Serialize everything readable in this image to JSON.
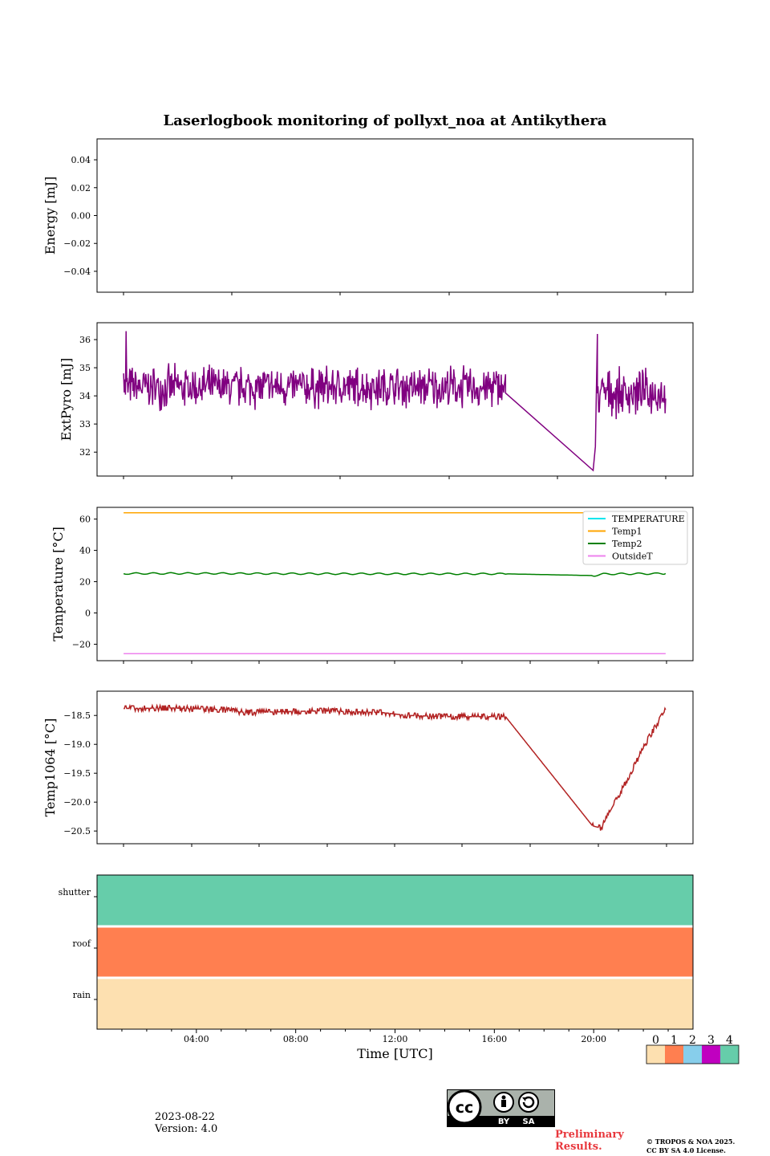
{
  "title": "Laserlogbook monitoring of pollyxt_noa at Antikythera",
  "footer": {
    "date": "2023-08-22",
    "version": "Version: 4.0",
    "preliminary_line1": "Preliminary",
    "preliminary_line2": "Results.",
    "copyright_line1": "© TROPOS & NOA 2025.",
    "copyright_line2": "CC BY SA 4.0 License.",
    "cc_by": "BY",
    "cc_sa": "SA"
  },
  "colors": {
    "extpyro": "#800080",
    "temperature": "#00e5ee",
    "temp1": "#ffa500",
    "temp2": "#008000",
    "outsideT": "#ee82ee",
    "temp1064": "#b22222",
    "status0": "#fde0b0",
    "status1": "#ff7f50",
    "status2": "#87ceeb",
    "status3": "#c000c0",
    "status4": "#66cdaa"
  },
  "chart_data": [
    {
      "type": "line",
      "ylabel": "Energy [mJ]",
      "ylim": [
        -0.055,
        0.055
      ],
      "yticks": [
        0.04,
        0.02,
        0.0,
        -0.02,
        -0.04
      ],
      "ytick_labels": [
        "0.04",
        "0.02",
        "0.00",
        "−0.02",
        "−0.04"
      ],
      "xlim": [
        0,
        24
      ],
      "series": []
    },
    {
      "type": "line",
      "ylabel": "ExtPyro [mJ]",
      "ylim": [
        31.15,
        36.6
      ],
      "yticks": [
        32,
        33,
        34,
        35,
        36
      ],
      "ytick_labels": [
        "32",
        "33",
        "34",
        "35",
        "36"
      ],
      "xlim": [
        0,
        24
      ],
      "series": [
        {
          "color_key": "extpyro",
          "noisy_segments": [
            {
              "x_start": 1.07,
              "x_end": 16.45,
              "mean": 34.3,
              "amplitude": 0.75,
              "count": 620,
              "first_x": 1.07,
              "first_y": 34.8
            },
            {
              "x_start": 20.15,
              "x_end": 22.9,
              "mean": 34.1,
              "amplitude": 0.8,
              "count": 110
            }
          ],
          "points": [
            {
              "x": 1.15,
              "y": 36.3
            },
            {
              "x": 16.45,
              "y": 34.1
            },
            {
              "x": 19.98,
              "y": 31.35
            },
            {
              "x": 20.07,
              "y": 32.2
            },
            {
              "x": 20.15,
              "y": 36.2
            }
          ]
        }
      ]
    },
    {
      "type": "line",
      "ylabel": "Temperature [°C]",
      "ylim": [
        -30.5,
        67.5
      ],
      "yticks": [
        60,
        40,
        20,
        0,
        -20
      ],
      "ytick_labels": [
        "60",
        "40",
        "20",
        "0",
        "−20"
      ],
      "xlim": [
        0,
        24
      ],
      "legend": "top-right",
      "series": [
        {
          "name": "TEMPERATURE",
          "color_key": "temperature",
          "points": []
        },
        {
          "name": "Temp1",
          "color_key": "temp1",
          "points": [
            {
              "x": 1.07,
              "y": 64
            },
            {
              "x": 22.9,
              "y": 64
            }
          ]
        },
        {
          "name": "Temp2",
          "color_key": "temp2",
          "points": [
            {
              "x": 1.07,
              "y": 25.2
            },
            {
              "x": 4,
              "y": 25.3
            },
            {
              "x": 8,
              "y": 25.1
            },
            {
              "x": 12,
              "y": 25.0
            },
            {
              "x": 16.45,
              "y": 25.0
            },
            {
              "x": 20.0,
              "y": 23.9
            },
            {
              "x": 20.4,
              "y": 24.9
            },
            {
              "x": 22.9,
              "y": 25.2
            }
          ],
          "wiggle": 0.5
        },
        {
          "name": "OutsideT",
          "color_key": "outsideT",
          "points": [
            {
              "x": 1.07,
              "y": -26
            },
            {
              "x": 22.9,
              "y": -26
            }
          ]
        }
      ]
    },
    {
      "type": "line",
      "ylabel": "Temp1064 [°C]",
      "ylim": [
        -20.72,
        -18.08
      ],
      "yticks": [
        -18.5,
        -19.0,
        -19.5,
        -20.0,
        -20.5
      ],
      "ytick_labels": [
        "−18.5",
        "−19.0",
        "−19.5",
        "−20.0",
        "−20.5"
      ],
      "xlim": [
        0,
        24
      ],
      "series": [
        {
          "color_key": "temp1064",
          "points": [
            {
              "x": 1.07,
              "y": -18.38
            },
            {
              "x": 3.0,
              "y": -18.37
            },
            {
              "x": 5.0,
              "y": -18.4
            },
            {
              "x": 6.0,
              "y": -18.45
            },
            {
              "x": 9.0,
              "y": -18.42
            },
            {
              "x": 11.5,
              "y": -18.45
            },
            {
              "x": 12.5,
              "y": -18.5
            },
            {
              "x": 14.0,
              "y": -18.52
            },
            {
              "x": 16.45,
              "y": -18.52
            },
            {
              "x": 19.95,
              "y": -20.41
            },
            {
              "x": 20.3,
              "y": -20.45
            },
            {
              "x": 21.3,
              "y": -19.65
            },
            {
              "x": 22.2,
              "y": -18.9
            },
            {
              "x": 22.9,
              "y": -18.4
            }
          ],
          "noise": 0.045,
          "noise_count": 700
        }
      ]
    },
    {
      "type": "heatmap",
      "xlabel": "Time [UTC]",
      "xticks": [
        4,
        8,
        12,
        16,
        20
      ],
      "xtick_labels": [
        "04:00",
        "08:00",
        "12:00",
        "16:00",
        "20:00"
      ],
      "xlim": [
        0,
        24
      ],
      "rows": [
        {
          "label": "shutter",
          "value": 4
        },
        {
          "label": "roof",
          "value": 1
        },
        {
          "label": "rain",
          "value": 0
        }
      ],
      "colorbar": {
        "labels": [
          "0",
          "1",
          "2",
          "3",
          "4"
        ],
        "color_keys": [
          "status0",
          "status1",
          "status2",
          "status3",
          "status4"
        ]
      }
    }
  ]
}
